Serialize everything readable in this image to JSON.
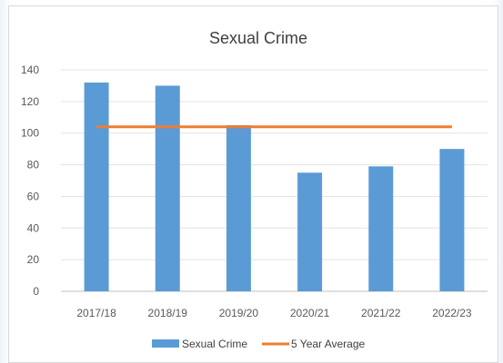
{
  "chart_data": {
    "type": "bar",
    "title": "Sexual Crime",
    "xlabel": "",
    "ylabel": "",
    "categories": [
      "2017/18",
      "2018/19",
      "2019/20",
      "2020/21",
      "2021/22",
      "2022/23"
    ],
    "series": [
      {
        "name": "Sexual Crime",
        "type": "bar",
        "color": "#5b9bd5",
        "values": [
          132,
          130,
          105,
          75,
          79,
          90
        ]
      },
      {
        "name": "5 Year Average",
        "type": "line",
        "color": "#ed7d31",
        "values": [
          104,
          104,
          104,
          104,
          104,
          104
        ]
      }
    ],
    "ylim": [
      0,
      140
    ],
    "yticks": [
      "0",
      "20",
      "40",
      "60",
      "80",
      "100",
      "120",
      "140"
    ],
    "grid": true,
    "legend": "bottom"
  }
}
